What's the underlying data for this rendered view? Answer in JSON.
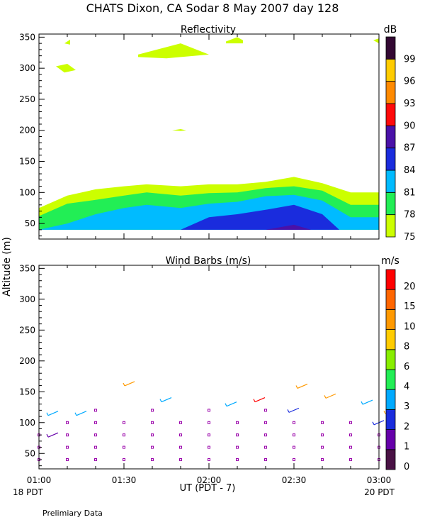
{
  "header": {
    "title": "CHATS Dixon, CA  Sodar    8 May 2007   day 128"
  },
  "footer": {
    "left_time_label": "18 PDT",
    "right_time_label": "20 PDT",
    "note": "Prelimiary Data"
  },
  "chart_data": [
    {
      "type": "heatmap",
      "title": "Reflectivity",
      "ylabel": "Altitude (m)",
      "y_ticks": [
        50,
        100,
        150,
        200,
        250,
        300,
        350
      ],
      "ylim": [
        25,
        355
      ],
      "x_ticks": [],
      "x_range_minutes": [
        0,
        120
      ],
      "colorbar": {
        "unit": "dB",
        "levels": [
          {
            "value": "75",
            "color": "#ccff00"
          },
          {
            "value": "78",
            "color": "#22ee55"
          },
          {
            "value": "81",
            "color": "#00bbff"
          },
          {
            "value": "84",
            "color": "#1a2cdd"
          },
          {
            "value": "87",
            "color": "#4a11a8"
          },
          {
            "value": "90",
            "color": "#ff0a0a"
          },
          {
            "value": "93",
            "color": "#ff8a00"
          },
          {
            "value": "96",
            "color": "#ffcc00"
          },
          {
            "value": "99",
            "color": "#330833"
          }
        ]
      },
      "contour_fills": [
        {
          "level": "75",
          "points": [
            [
              0,
              75
            ],
            [
              10,
              95
            ],
            [
              20,
              105
            ],
            [
              30,
              110
            ],
            [
              38,
              113
            ],
            [
              50,
              110
            ],
            [
              60,
              113
            ],
            [
              70,
              113
            ],
            [
              80,
              117
            ],
            [
              90,
              125
            ],
            [
              100,
              115
            ],
            [
              110,
              100
            ],
            [
              120,
              100
            ],
            [
              120,
              40
            ],
            [
              0,
              40
            ]
          ]
        },
        {
          "level": "78",
          "points": [
            [
              0,
              62
            ],
            [
              10,
              82
            ],
            [
              20,
              88
            ],
            [
              30,
              95
            ],
            [
              38,
              100
            ],
            [
              50,
              95
            ],
            [
              60,
              99
            ],
            [
              70,
              100
            ],
            [
              80,
              107
            ],
            [
              90,
              110
            ],
            [
              100,
              103
            ],
            [
              110,
              80
            ],
            [
              120,
              80
            ],
            [
              120,
              40
            ],
            [
              0,
              40
            ]
          ]
        },
        {
          "level": "81",
          "points": [
            [
              0,
              40
            ],
            [
              10,
              50
            ],
            [
              20,
              65
            ],
            [
              30,
              75
            ],
            [
              38,
              80
            ],
            [
              50,
              75
            ],
            [
              60,
              82
            ],
            [
              70,
              85
            ],
            [
              80,
              94
            ],
            [
              90,
              96
            ],
            [
              100,
              87
            ],
            [
              110,
              60
            ],
            [
              120,
              60
            ],
            [
              120,
              40
            ]
          ]
        },
        {
          "level": "84",
          "points": [
            [
              50,
              40
            ],
            [
              60,
              60
            ],
            [
              70,
              65
            ],
            [
              80,
              72
            ],
            [
              90,
              80
            ],
            [
              100,
              65
            ],
            [
              106,
              40
            ]
          ]
        },
        {
          "level": "87",
          "points": [
            [
              80,
              40
            ],
            [
              90,
              48
            ],
            [
              96,
              40
            ]
          ]
        },
        {
          "level": "75",
          "points": [
            [
              6,
              303
            ],
            [
              10,
              307
            ],
            [
              13,
              297
            ],
            [
              9,
              293
            ]
          ]
        },
        {
          "level": "75",
          "points": [
            [
              9,
              340
            ],
            [
              11,
              346
            ],
            [
              11,
              338
            ]
          ]
        },
        {
          "level": "75",
          "points": [
            [
              35,
              322
            ],
            [
              50,
              340
            ],
            [
              60,
              322
            ],
            [
              45,
              316
            ],
            [
              35,
              318
            ]
          ]
        },
        {
          "level": "75",
          "points": [
            [
              66,
              343
            ],
            [
              70,
              350
            ],
            [
              72,
              345
            ],
            [
              72,
              340
            ],
            [
              66,
              340
            ]
          ]
        },
        {
          "level": "75",
          "points": [
            [
              118,
              345
            ],
            [
              120,
              348
            ],
            [
              120,
              340
            ]
          ]
        },
        {
          "level": "75",
          "points": [
            [
              47,
              200
            ],
            [
              50,
              202
            ],
            [
              52,
              200
            ],
            [
              50,
              199
            ]
          ]
        }
      ]
    },
    {
      "type": "scatter",
      "title": "Wind Barbs (m/s)",
      "ylabel": "Altitude (m)",
      "y_ticks": [
        50,
        100,
        150,
        200,
        250,
        300,
        350
      ],
      "ylim": [
        25,
        355
      ],
      "x_ticks": [
        "01:00",
        "01:30",
        "02:00",
        "02:30",
        "03:00"
      ],
      "x_range_minutes": [
        0,
        120
      ],
      "xlabel": "UT  (PDT - 7)",
      "colorbar": {
        "unit": "m/s",
        "levels": [
          {
            "value": "0",
            "color": "#4a1245"
          },
          {
            "value": "1",
            "color": "#6600aa"
          },
          {
            "value": "2",
            "color": "#1a2cdd"
          },
          {
            "value": "3",
            "color": "#00aaff"
          },
          {
            "value": "4",
            "color": "#22ee55"
          },
          {
            "value": "6",
            "color": "#88ee00"
          },
          {
            "value": "8",
            "color": "#ffcc00"
          },
          {
            "value": "10",
            "color": "#ff9900"
          },
          {
            "value": "15",
            "color": "#ff6600"
          },
          {
            "value": "20",
            "color": "#ff0000"
          }
        ]
      },
      "calm_points": {
        "color": "#9900aa",
        "x": [
          0,
          10,
          20,
          30,
          40,
          50,
          60,
          70,
          80,
          90,
          100,
          110,
          120
        ],
        "altitudes": [
          40,
          60,
          80,
          100,
          120
        ],
        "missing": [
          [
            0,
            100
          ],
          [
            0,
            120
          ],
          [
            10,
            120
          ],
          [
            30,
            120
          ],
          [
            50,
            120
          ],
          [
            70,
            120
          ],
          [
            90,
            120
          ],
          [
            110,
            120
          ],
          [
            120,
            120
          ],
          [
            100,
            120
          ],
          [
            120,
            100
          ]
        ]
      },
      "barbs": [
        {
          "x": 5,
          "alt": 115,
          "color": "#00aaff"
        },
        {
          "x": 15,
          "alt": 115,
          "color": "#00aaff"
        },
        {
          "x": 5,
          "alt": 80,
          "color": "#6600aa"
        },
        {
          "x": 32,
          "alt": 163,
          "color": "#ff9900"
        },
        {
          "x": 45,
          "alt": 137,
          "color": "#00aaff"
        },
        {
          "x": 68,
          "alt": 130,
          "color": "#00aaff"
        },
        {
          "x": 78,
          "alt": 137,
          "color": "#ff0000"
        },
        {
          "x": 93,
          "alt": 159,
          "color": "#ff9900"
        },
        {
          "x": 103,
          "alt": 143,
          "color": "#ff9900"
        },
        {
          "x": 116,
          "alt": 133,
          "color": "#00aaff"
        },
        {
          "x": 120,
          "alt": 100,
          "color": "#1a2cdd"
        },
        {
          "x": 90,
          "alt": 120,
          "color": "#1a2cdd"
        },
        {
          "x": 124,
          "alt": 118,
          "color": "#ff9900"
        }
      ]
    }
  ]
}
